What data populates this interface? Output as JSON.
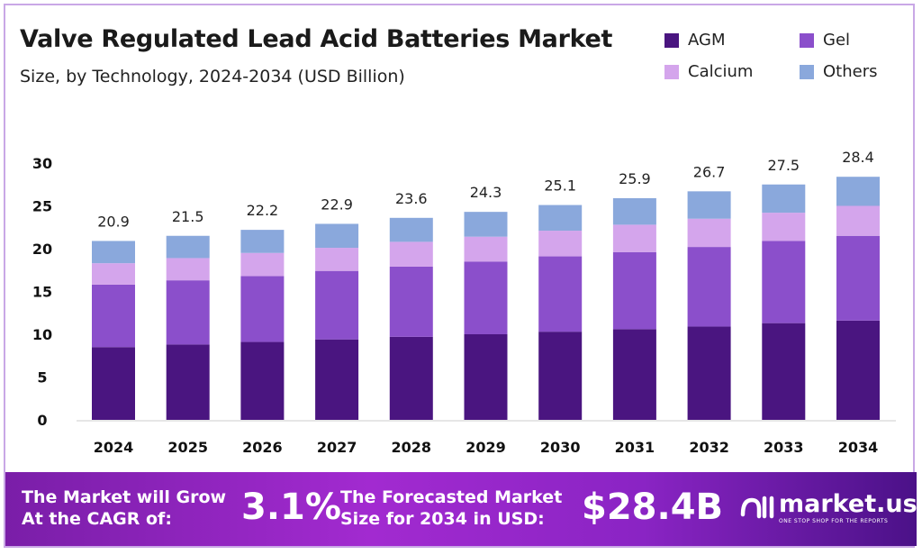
{
  "chart_data": {
    "type": "bar",
    "stacked": true,
    "title": "Valve Regulated Lead Acid Batteries Market",
    "subtitle": "Size, by Technology, 2024-2034 (USD Billion)",
    "categories": [
      "2024",
      "2025",
      "2026",
      "2027",
      "2028",
      "2029",
      "2030",
      "2031",
      "2032",
      "2033",
      "2034"
    ],
    "totals": [
      "20.9",
      "21.5",
      "22.2",
      "22.9",
      "23.6",
      "24.3",
      "25.1",
      "25.9",
      "26.7",
      "27.5",
      "28.4"
    ],
    "series": [
      {
        "name": "AGM",
        "color": "#4a1580",
        "values": [
          8.5,
          8.8,
          9.1,
          9.4,
          9.7,
          10.0,
          10.3,
          10.6,
          10.9,
          11.3,
          11.6
        ]
      },
      {
        "name": "Gel",
        "color": "#8b4fcb",
        "values": [
          7.3,
          7.5,
          7.7,
          8.0,
          8.2,
          8.5,
          8.8,
          9.0,
          9.3,
          9.6,
          9.9
        ]
      },
      {
        "name": "Calcium",
        "color": "#d4a5ec",
        "values": [
          2.5,
          2.6,
          2.7,
          2.7,
          2.9,
          2.9,
          3.0,
          3.2,
          3.3,
          3.3,
          3.5
        ]
      },
      {
        "name": "Others",
        "color": "#8aa8dc",
        "values": [
          2.6,
          2.6,
          2.7,
          2.8,
          2.8,
          2.9,
          3.0,
          3.1,
          3.2,
          3.3,
          3.4
        ]
      }
    ],
    "yticks": [
      "0",
      "5",
      "10",
      "15",
      "20",
      "25",
      "30"
    ],
    "ylim": [
      0,
      30
    ],
    "xlabel": "",
    "ylabel": "",
    "grid": false,
    "legend": "top-right"
  },
  "footer": {
    "cagr_label_1": "The Market will Grow",
    "cagr_label_2": "At the CAGR of:",
    "cagr_value": "3.1%",
    "forecast_label_1": "The Forecasted Market",
    "forecast_label_2": "Size for 2034 in USD:",
    "forecast_value": "$28.4B",
    "brand": "market.us",
    "tagline": "ONE STOP SHOP FOR THE REPORTS"
  }
}
